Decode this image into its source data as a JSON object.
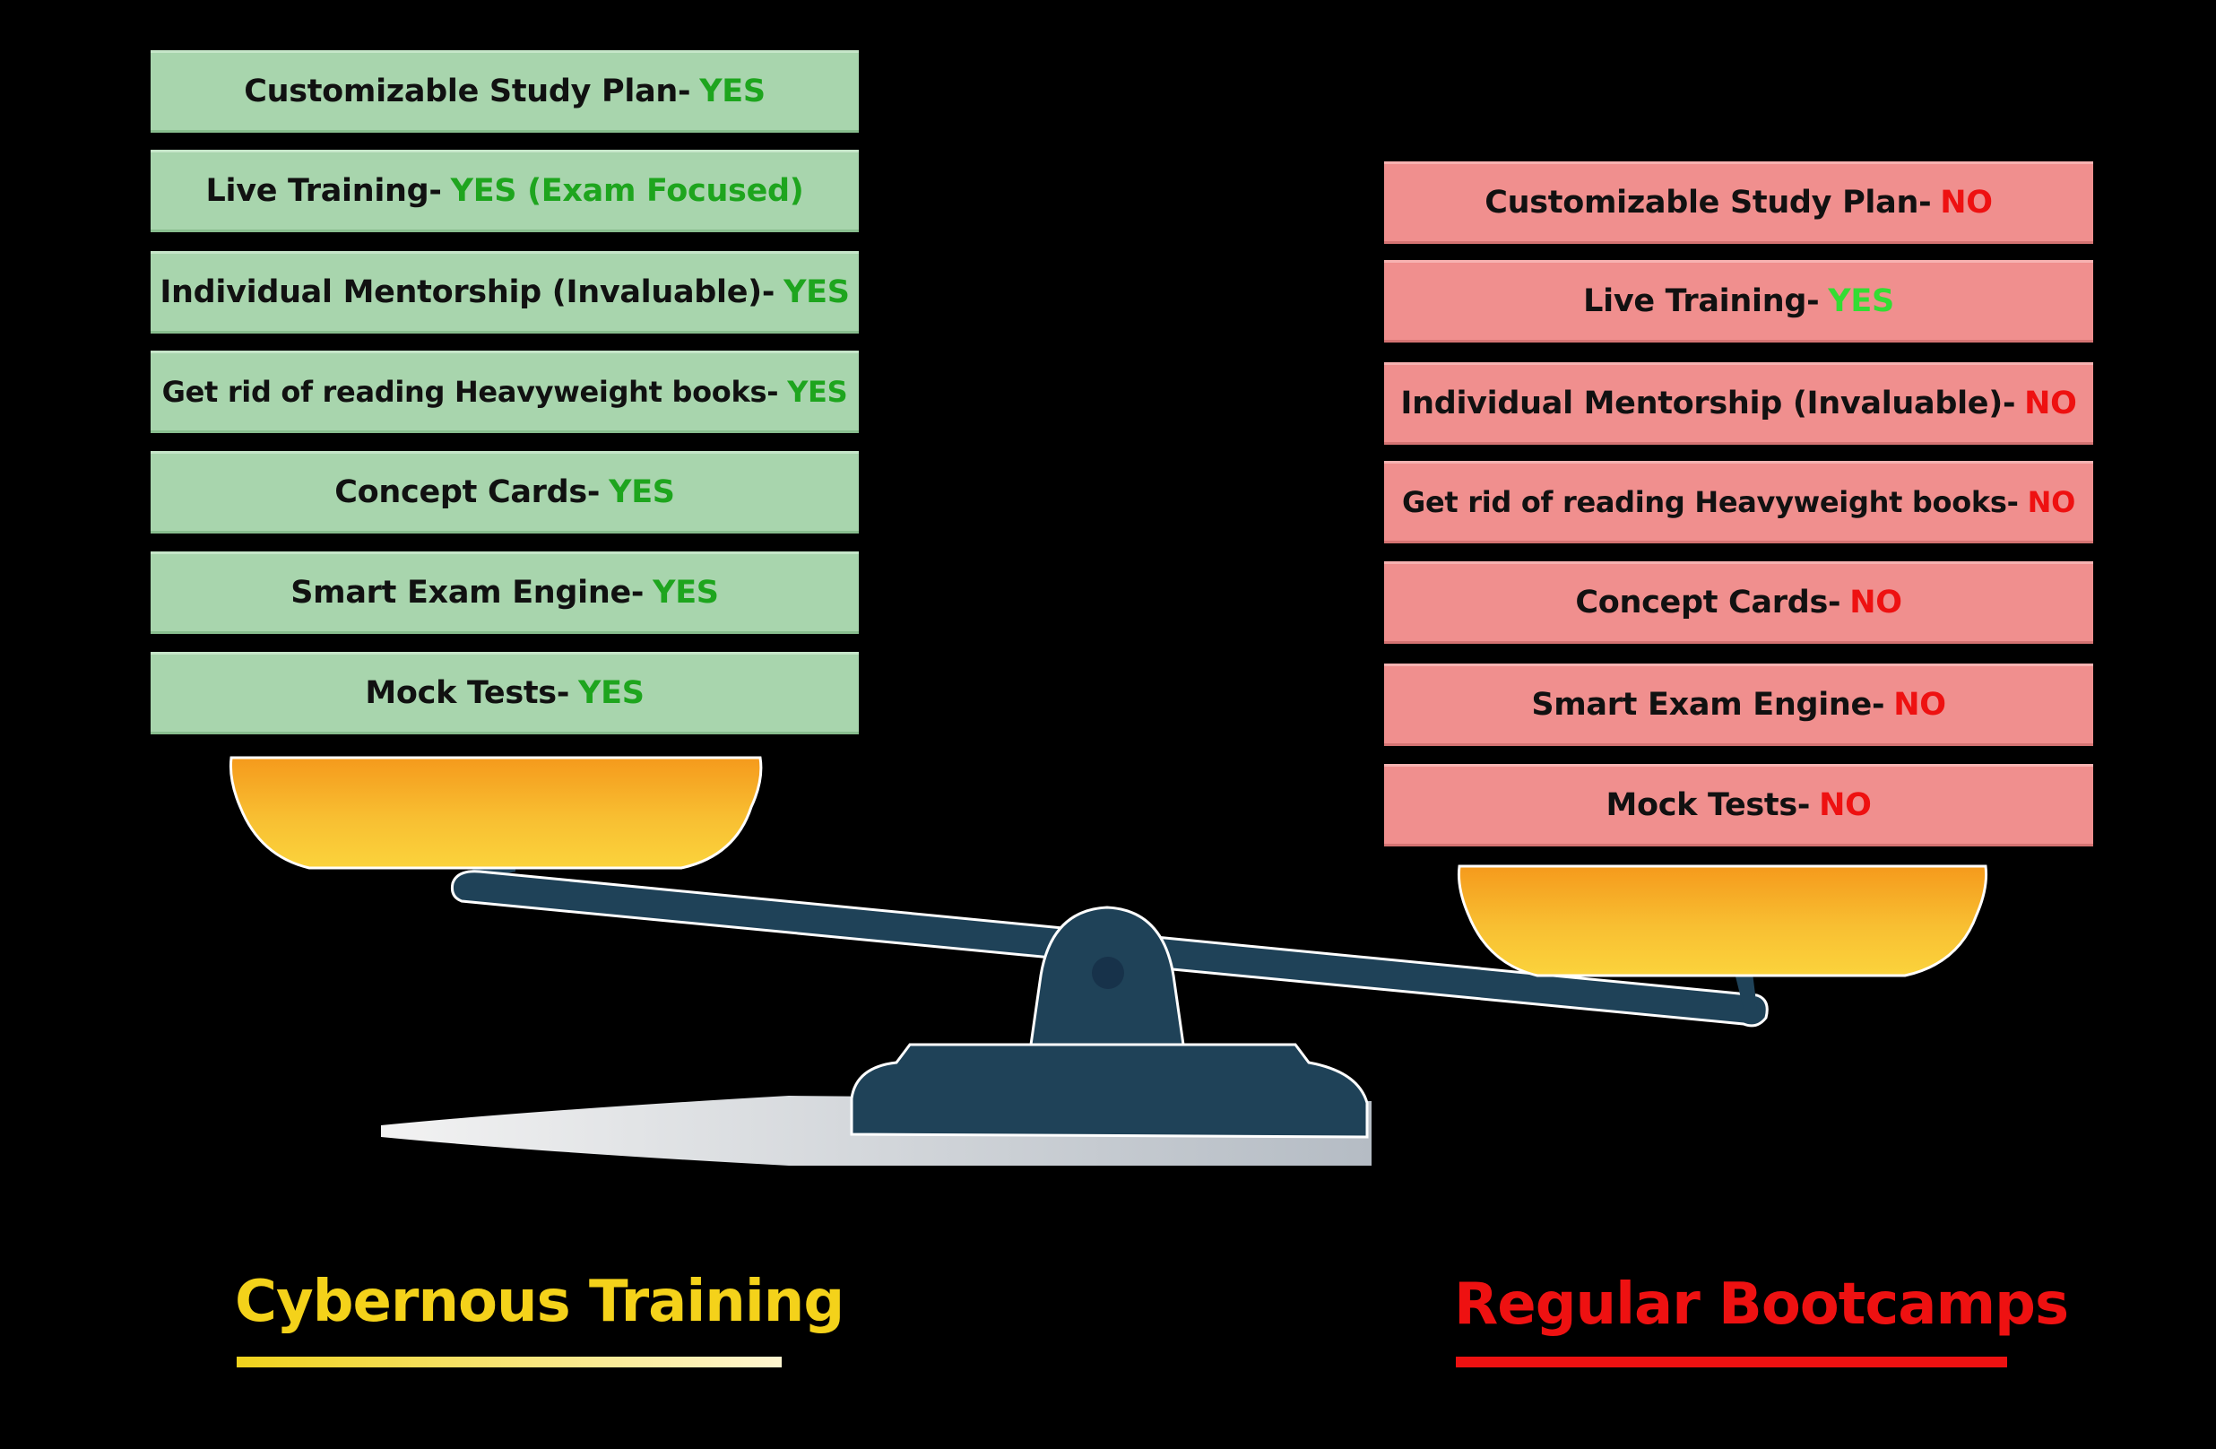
{
  "colors": {
    "yes_left": "#1ea51e",
    "yes_right": "#33dd33",
    "no": "#ee1111",
    "left_card": "#a8d5ad",
    "right_card": "#f08f8e",
    "pan": "#f6b42a",
    "beam": "#1f4258"
  },
  "left": {
    "title": "Cybernous Training",
    "items": [
      {
        "label": "Customizable Study Plan-",
        "value": "YES"
      },
      {
        "label": "Live Training-",
        "value": "YES (Exam Focused)"
      },
      {
        "label": "Individual Mentorship (Invaluable)-",
        "value": "YES"
      },
      {
        "label": "Get rid of reading Heavyweight books-",
        "value": "YES"
      },
      {
        "label": "Concept Cards-",
        "value": "YES"
      },
      {
        "label": "Smart Exam Engine-",
        "value": "YES"
      },
      {
        "label": "Mock Tests-",
        "value": "YES"
      }
    ]
  },
  "right": {
    "title": "Regular Bootcamps",
    "items": [
      {
        "label": "Customizable Study Plan-",
        "value": "NO"
      },
      {
        "label": "Live Training-",
        "value": "YES"
      },
      {
        "label": "Individual Mentorship (Invaluable)-",
        "value": "NO"
      },
      {
        "label": "Get rid of reading Heavyweight books-",
        "value": "NO"
      },
      {
        "label": "Concept Cards-",
        "value": "NO"
      },
      {
        "label": "Smart Exam Engine-",
        "value": "NO"
      },
      {
        "label": "Mock Tests-",
        "value": "NO"
      }
    ]
  }
}
